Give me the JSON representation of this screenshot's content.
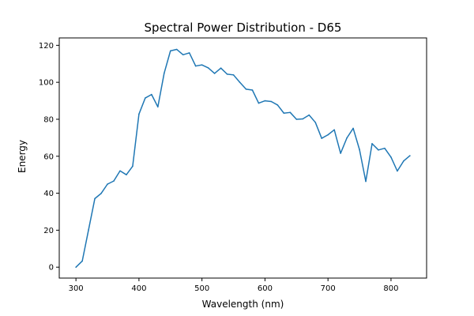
{
  "chart_data": {
    "type": "line",
    "title": "Spectral Power Distribution - D65",
    "xlabel": "Wavelength (nm)",
    "ylabel": "Energy",
    "xlim": [
      273.5,
      856.5
    ],
    "ylim": [
      -5.9,
      124.0
    ],
    "xticks": [
      300,
      400,
      500,
      600,
      700,
      800
    ],
    "yticks": [
      0,
      20,
      40,
      60,
      80,
      100,
      120
    ],
    "grid": false,
    "legend": "none",
    "line_color": "#1f77b4",
    "x": [
      300,
      310,
      320,
      330,
      340,
      350,
      360,
      370,
      380,
      390,
      400,
      410,
      420,
      430,
      440,
      450,
      460,
      470,
      480,
      490,
      500,
      510,
      520,
      530,
      540,
      550,
      560,
      570,
      580,
      590,
      600,
      610,
      620,
      630,
      640,
      650,
      660,
      670,
      680,
      690,
      700,
      710,
      720,
      730,
      740,
      750,
      760,
      770,
      780,
      790,
      800,
      810,
      820,
      830
    ],
    "y": [
      0.0,
      3.3,
      20.2,
      37.1,
      39.9,
      44.9,
      46.6,
      52.1,
      50.0,
      54.6,
      82.8,
      91.5,
      93.4,
      86.7,
      104.9,
      117.0,
      117.8,
      114.9,
      115.9,
      108.8,
      109.4,
      107.8,
      104.8,
      107.7,
      104.4,
      104.0,
      100.0,
      96.3,
      95.8,
      88.7,
      90.0,
      89.6,
      87.7,
      83.3,
      83.7,
      80.0,
      80.2,
      82.3,
      78.3,
      69.7,
      71.6,
      74.3,
      61.6,
      69.9,
      75.1,
      63.6,
      46.4,
      66.8,
      63.4,
      64.3,
      59.5,
      52.0,
      57.4,
      60.3
    ]
  }
}
